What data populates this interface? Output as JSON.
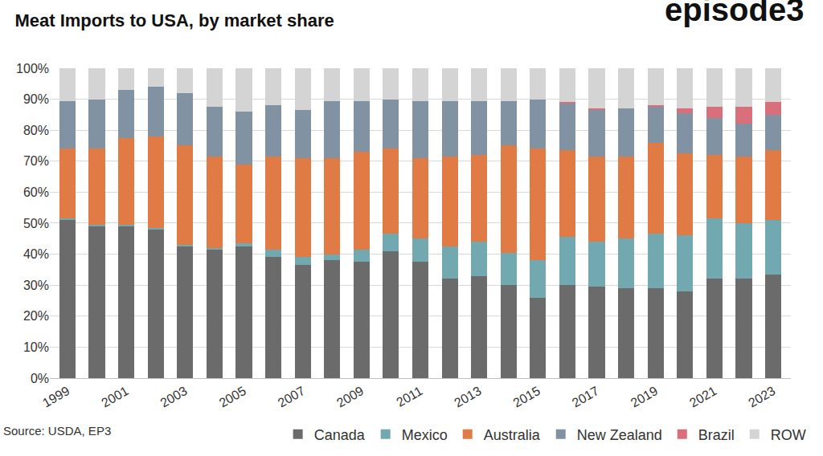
{
  "chart_data": {
    "type": "bar",
    "title": "Meat Imports to USA, by market share",
    "annotations": [
      "episode3",
      "Source: USDA, EP3"
    ],
    "categories": [
      "1999",
      null,
      "2001",
      null,
      "2003",
      null,
      "2005",
      null,
      "2007",
      null,
      "2009",
      null,
      "2011",
      null,
      "2013",
      null,
      "2015",
      null,
      "2017",
      null,
      "2019",
      null,
      "2021",
      null,
      "2023"
    ],
    "series": [
      {
        "name": "Canada",
        "color": "#6b6b6b",
        "values": [
          51,
          49,
          49,
          48,
          42.5,
          41.5,
          42.5,
          39,
          36.5,
          38,
          37.5,
          41,
          37.5,
          32,
          33,
          30,
          26,
          30,
          29.5,
          29,
          29,
          28,
          32,
          32,
          33.5
        ]
      },
      {
        "name": "Mexico",
        "color": "#72a9b1",
        "values": [
          0.5,
          0.5,
          0.5,
          0.5,
          0.5,
          0.5,
          1,
          2.5,
          2.5,
          2,
          4,
          5.5,
          7.5,
          10.5,
          11,
          10.5,
          12,
          15.5,
          14.5,
          16,
          17.5,
          18,
          19.5,
          18,
          17.5
        ]
      },
      {
        "name": "Australia",
        "color": "#e07b45",
        "values": [
          22.5,
          24.5,
          28,
          29.5,
          32,
          29.5,
          25.5,
          30,
          32,
          31,
          31.5,
          27.5,
          26,
          29,
          28,
          34.5,
          36,
          28,
          27.5,
          26.5,
          29.5,
          26.5,
          20.5,
          21.5,
          22.5
        ]
      },
      {
        "name": "New Zealand",
        "color": "#8193a2",
        "values": [
          15.5,
          16,
          15.5,
          16,
          17,
          16,
          17,
          16.5,
          15.5,
          18.5,
          16.5,
          16,
          18.5,
          18,
          17.5,
          14.5,
          16,
          15,
          15,
          15.5,
          11.5,
          13,
          12,
          10.5,
          11.5
        ]
      },
      {
        "name": "Brazil",
        "color": "#d96f7a",
        "values": [
          0,
          0,
          0,
          0,
          0,
          0,
          0,
          0,
          0,
          0,
          0,
          0,
          0,
          0,
          0,
          0,
          0,
          0.5,
          0.5,
          0,
          0.5,
          1.5,
          3.5,
          5.5,
          4
        ]
      },
      {
        "name": "ROW",
        "color": "#d4d4d4",
        "values": [
          10.5,
          10,
          7,
          6,
          8,
          12.5,
          14,
          12,
          13.5,
          10.5,
          10.5,
          10,
          10.5,
          10.5,
          10.5,
          10.5,
          10,
          11,
          13,
          13,
          12,
          13,
          12.5,
          12.5,
          11
        ]
      }
    ],
    "ylim": [
      0,
      100
    ],
    "yticks": [
      {
        "value": 0,
        "label": "0%"
      },
      {
        "value": 10,
        "label": "10%"
      },
      {
        "value": 20,
        "label": "20%"
      },
      {
        "value": 30,
        "label": "30%"
      },
      {
        "value": 40,
        "label": "40%"
      },
      {
        "value": 50,
        "label": "50%"
      },
      {
        "value": 60,
        "label": "60%"
      },
      {
        "value": 70,
        "label": "70%"
      },
      {
        "value": 80,
        "label": "80%"
      },
      {
        "value": 90,
        "label": "90%"
      },
      {
        "value": 100,
        "label": "100%"
      }
    ],
    "stacked": true,
    "grid": true,
    "legend": "bottom"
  }
}
